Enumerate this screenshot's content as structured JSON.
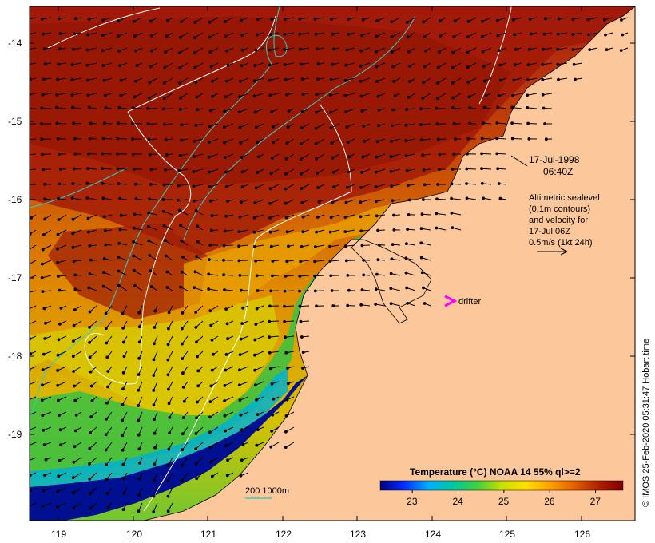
{
  "map": {
    "lon_ticks": [
      "119",
      "120",
      "121",
      "122",
      "123",
      "124",
      "125",
      "126"
    ],
    "lat_ticks": [
      "-14",
      "-15",
      "-16",
      "-17",
      "-18",
      "-19"
    ],
    "date": "17-Jul-1998",
    "time": "06:40Z",
    "sealevel_note": [
      "Altimetric sealevel",
      "(0.1m contours)",
      "and velocity for",
      "17-Jul 06Z",
      "0.5m/s (1kt 24h)"
    ],
    "drifter_label": "drifter",
    "depth_legend": "200  1000m",
    "credit": "© IMOS 25-Feb-2020 05:31:47 Hobart time",
    "colors": {
      "land": "#fcc89b",
      "drifter": "#ff00ff",
      "depth_contour": "#33cccc",
      "sealevel_contour": "#ffffff"
    }
  },
  "colorbar": {
    "title": "Temperature (°C) NOAA 14 55% ql>=2",
    "ticks": [
      "23",
      "24",
      "25",
      "26",
      "27"
    ],
    "range": [
      22.3,
      27.6
    ],
    "colors": [
      "#000080",
      "#0030ff",
      "#00b0ff",
      "#00c8a0",
      "#40d040",
      "#c8e000",
      "#ffe000",
      "#ffa000",
      "#e06000",
      "#b02000",
      "#800000"
    ]
  }
}
